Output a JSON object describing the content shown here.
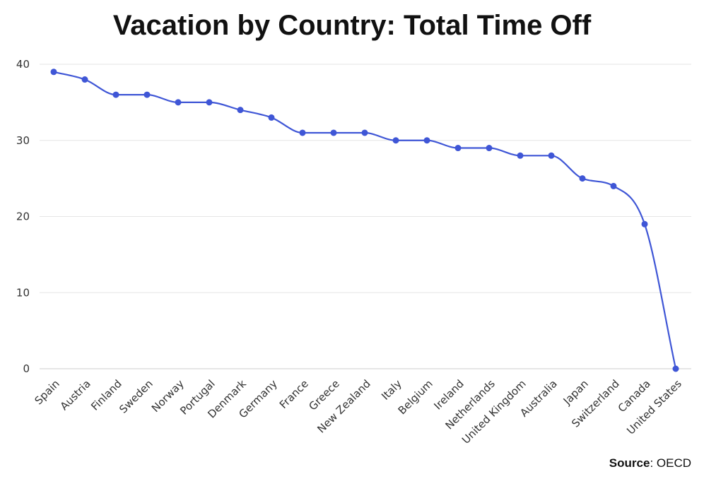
{
  "chart_data": {
    "type": "line",
    "title": "Vacation by Country: Total Time Off",
    "xlabel": "",
    "ylabel": "",
    "categories": [
      "Spain",
      "Austria",
      "Finland",
      "Sweden",
      "Norway",
      "Portugal",
      "Denmark",
      "Germany",
      "France",
      "Greece",
      "New Zealand",
      "Italy",
      "Belgium",
      "Ireland",
      "Netherlands",
      "United Kingdom",
      "Australia",
      "Japan",
      "Switzerland",
      "Canada",
      "United States"
    ],
    "series": [
      {
        "values": [
          39,
          38,
          36,
          36,
          35,
          35,
          34,
          33,
          31,
          31,
          31,
          30,
          30,
          29,
          29,
          28,
          28,
          25,
          24,
          19,
          0
        ],
        "color": "#3f56d6"
      }
    ],
    "ylim": [
      0,
      40
    ],
    "yticks": [
      "0",
      "10",
      "20",
      "30",
      "40"
    ],
    "grid": true,
    "legend": "none"
  },
  "source": {
    "label": "Source",
    "value": ": OECD"
  },
  "colors": {
    "line": "#3f56d6",
    "grid": "#e6e6e6",
    "axis": "#cccccc"
  }
}
